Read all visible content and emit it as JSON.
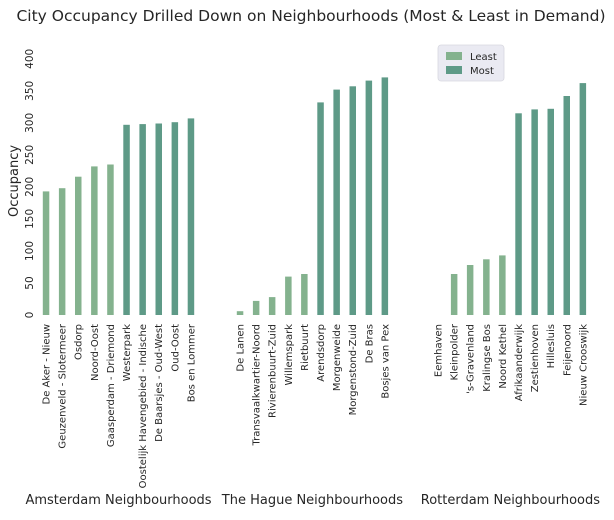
{
  "chart_data": {
    "type": "bar",
    "title": "City Occupancy Drilled Down on Neighbourhoods (Most & Least in Demand)",
    "ylabel": "Occupancy",
    "ylim": [
      0,
      420
    ],
    "yticks": [
      0,
      50,
      100,
      150,
      200,
      250,
      300,
      350,
      400
    ],
    "grid": false,
    "legend": {
      "position": "top-right",
      "entries": [
        {
          "name": "Least",
          "color": "#84b28e"
        },
        {
          "name": "Most",
          "color": "#5e9a87"
        }
      ]
    },
    "series": [
      {
        "name": "Least",
        "color": "#84b28e"
      },
      {
        "name": "Most",
        "color": "#5e9a87"
      }
    ],
    "panels": [
      {
        "xlabel": "Amsterdam Neighbourhoods",
        "categories": [
          "De Aker - Nieuw",
          "Geuzenveld - Slotermeer",
          "Osdorp",
          "Noord-Oost",
          "Gaasperdam - Driemond",
          "Westerpark",
          "Oostelijk Havengebied - Indische",
          "De Baarsjes - Oud-West",
          "Oud-Oost",
          "Bos en Lommer"
        ],
        "least": [
          193,
          198,
          216,
          232,
          235,
          null,
          null,
          null,
          null,
          null
        ],
        "most": [
          null,
          null,
          null,
          null,
          null,
          297,
          298,
          299,
          301,
          307
        ]
      },
      {
        "xlabel": "The Hague Neighbourhoods",
        "categories": [
          "De Lanen",
          "Transvaalkwartier-Noord",
          "Rivierenbuurt-Zuid",
          "Willemspark",
          "Rietbuurt",
          "Arendsdorp",
          "Morgenweide",
          "Morgenstond-Zuid",
          "De Bras",
          "Bosjes van Pex"
        ],
        "least": [
          6,
          22,
          28,
          60,
          64,
          null,
          null,
          null,
          null,
          null
        ],
        "most": [
          null,
          null,
          null,
          null,
          null,
          332,
          352,
          357,
          366,
          371
        ]
      },
      {
        "xlabel": "Rotterdam Neighbourhoods",
        "categories": [
          "Eemhaven",
          "Kleinpolder",
          "'s-Gravenland",
          "Kralingse Bos",
          "Noord Kethel",
          "Afrikaanderwijk",
          "Zestienhoven",
          "Hillesluis",
          "Feijenoord",
          "Nieuw Crooswijk"
        ],
        "least": [
          0,
          64,
          78,
          87,
          93,
          null,
          null,
          null,
          null,
          null
        ],
        "most": [
          null,
          null,
          null,
          null,
          null,
          315,
          321,
          322,
          342,
          362
        ]
      }
    ]
  }
}
